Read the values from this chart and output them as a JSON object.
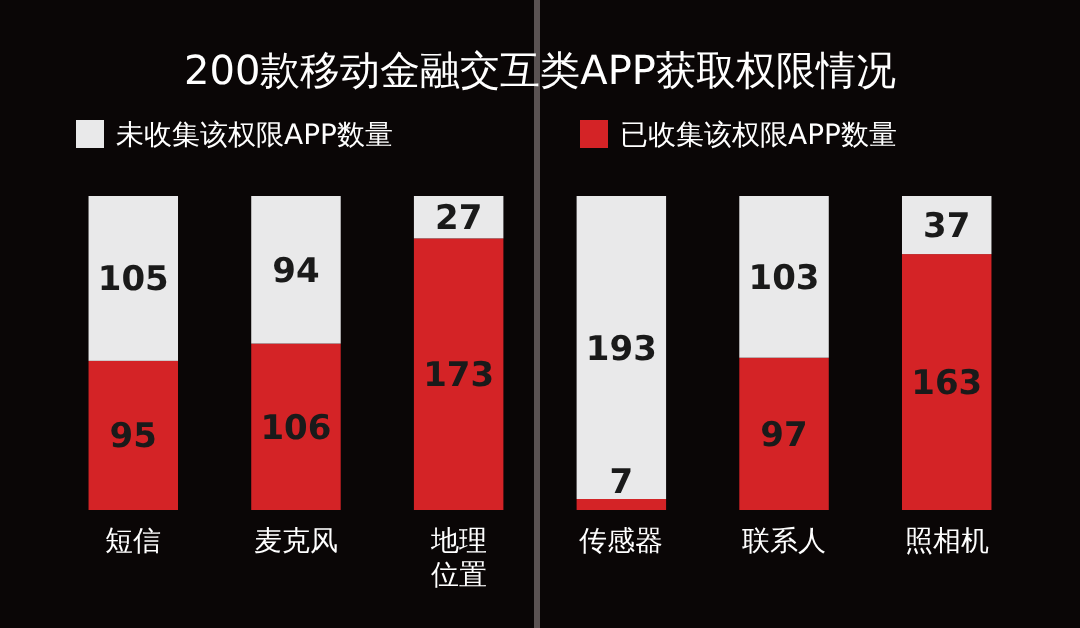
{
  "chart_data": {
    "type": "bar",
    "title": "200款移动金融交互类APP获取权限情况",
    "categories": [
      "短信",
      "麦克风",
      "地理位置",
      "传感器",
      "联系人",
      "照相机"
    ],
    "stacked": true,
    "ylim": [
      0,
      200
    ],
    "tick_labels": "x",
    "data_labels": true,
    "legend": "top",
    "series": [
      {
        "name": "已收集该权限APP数量",
        "color": "#d42326",
        "values": [
          95,
          106,
          173,
          7,
          97,
          163
        ]
      },
      {
        "name": "未收集该权限APP数量",
        "color": "#e9e9ea",
        "values": [
          105,
          94,
          27,
          193,
          103,
          37
        ]
      }
    ]
  }
}
